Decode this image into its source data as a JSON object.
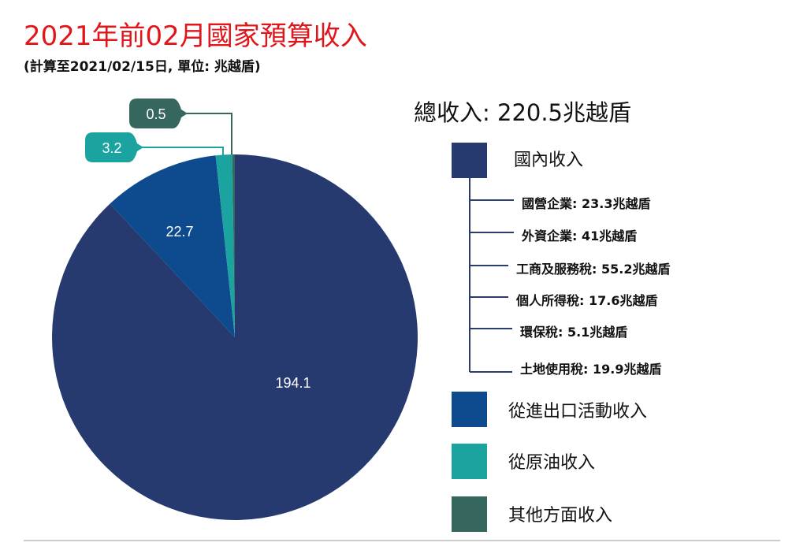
{
  "title": "2021年前02月國家預算收入",
  "subtitle": "(計算至2021/02/15日, 單位: 兆越盾)",
  "total_label": "總收入: 220.5兆越盾",
  "chart_data": {
    "type": "pie",
    "title": "2021年前02月國家預算收入",
    "subtitle": "(計算至2021/02/15日, 單位: 兆越盾)",
    "unit": "兆越盾",
    "total": 220.5,
    "start_angle": "12 o'clock",
    "direction": "clockwise",
    "legend_position": "right",
    "slices": [
      {
        "name": "國內收入",
        "value": 194.1,
        "label": "194.1",
        "color": "#263a70"
      },
      {
        "name": "從進出口活動收入",
        "value": 22.7,
        "label": "22.7",
        "color": "#0d4b8e"
      },
      {
        "name": "從原油收入",
        "value": 3.2,
        "label": "3.2",
        "color": "#1aa39f"
      },
      {
        "name": "其他方面收入",
        "value": 0.5,
        "label": "0.5",
        "color": "#35675f"
      }
    ],
    "domestic_breakdown": [
      "國營企業: 23.3兆越盾",
      "外資企業: 41兆越盾",
      "工商及服務稅: 55.2兆越盾",
      "個人所得稅: 17.6兆越盾",
      "環保稅: 5.1兆越盾",
      "土地使用稅: 19.9兆越盾"
    ]
  }
}
